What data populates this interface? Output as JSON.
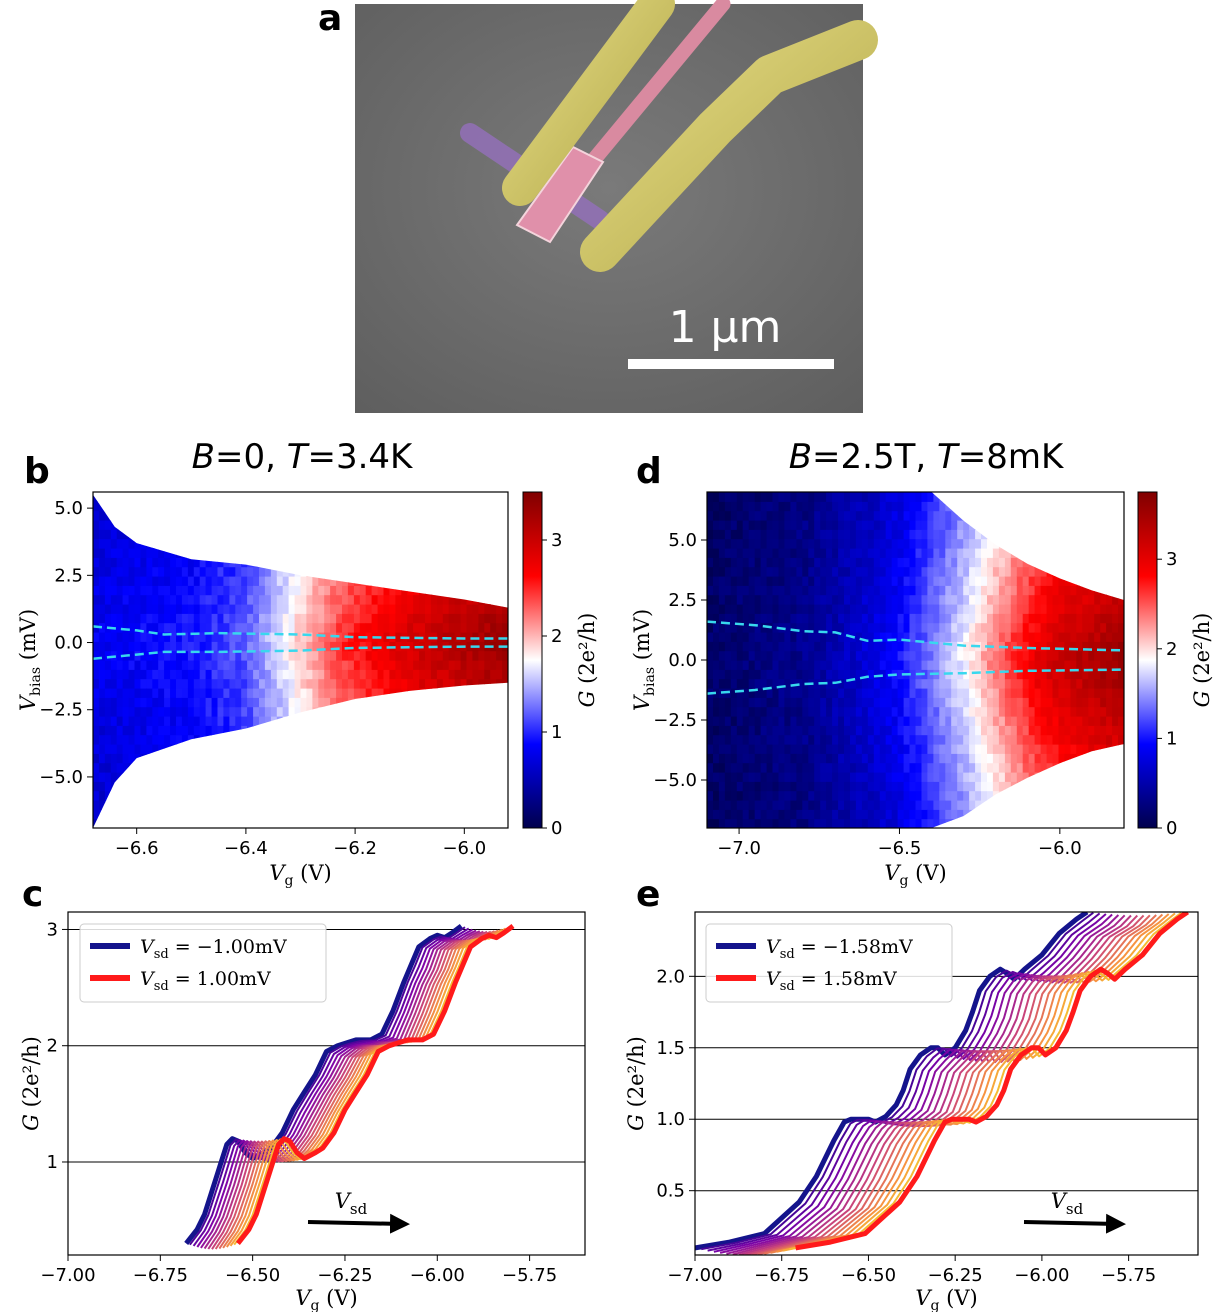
{
  "figure": {
    "panel_labels": {
      "a": "a",
      "b": "b",
      "c": "c",
      "d": "d",
      "e": "e"
    },
    "scale_bar_label": "1 µm"
  },
  "colors": {
    "gate_yellow": "#c9bf5c",
    "wire_pink": "#d98aa0",
    "wire_violet": "#9370b8",
    "substrate": "#6f6f6f",
    "cyan_dash": "#38d8ee",
    "neg_bias_blue": "#14148c",
    "pos_bias_red": "#ff1a1a"
  },
  "chart_data": [
    {
      "id": "b",
      "type": "heatmap",
      "title": "B=0,  T=3.4K",
      "title_parts": [
        "B",
        "=0,  ",
        "T",
        "=3.4K"
      ],
      "xlabel": "V_g (V)",
      "ylabel": "V_bias (mV)",
      "xlim": [
        -6.68,
        -5.92
      ],
      "ylim": [
        -6.9,
        5.6
      ],
      "xticks": [
        -6.6,
        -6.4,
        -6.2,
        -6.0
      ],
      "xtick_labels": [
        "−6.6",
        "−6.4",
        "−6.2",
        "−6.0"
      ],
      "yticks": [
        -5.0,
        -2.5,
        0.0,
        2.5,
        5.0
      ],
      "ytick_labels": [
        "−5.0",
        "−2.5",
        "0.0",
        "2.5",
        "5.0"
      ],
      "colorbar": {
        "label": "G (2e²/h)",
        "range": [
          0,
          3.5
        ],
        "ticks": [
          0,
          1,
          2,
          3
        ],
        "tick_labels": [
          "0",
          "1",
          "2",
          "3"
        ],
        "cmap": "seismic"
      },
      "envelope": {
        "vg": [
          -6.68,
          -6.64,
          -6.6,
          -6.5,
          -6.4,
          -6.3,
          -6.2,
          -6.1,
          -6.0,
          -5.92
        ],
        "vmax": [
          5.5,
          4.3,
          3.7,
          3.1,
          2.9,
          2.5,
          2.2,
          1.9,
          1.6,
          1.3
        ],
        "vmin": [
          -6.9,
          -5.2,
          -4.3,
          -3.6,
          -3.2,
          -2.6,
          -2.1,
          -1.8,
          -1.6,
          -1.5
        ]
      },
      "conductance_profile": {
        "vg": [
          -6.68,
          -6.5,
          -6.4,
          -6.32,
          -6.28,
          -6.22,
          -6.1,
          -6.0,
          -5.92
        ],
        "g": [
          0.8,
          0.95,
          1.2,
          1.8,
          2.1,
          2.5,
          2.95,
          3.2,
          3.35
        ]
      },
      "dashed_lines": [
        {
          "vg": [
            -6.68,
            -6.6,
            -6.55,
            -6.45,
            -6.3,
            -6.2,
            -6.0,
            -5.92
          ],
          "v": [
            0.6,
            0.45,
            0.3,
            0.35,
            0.3,
            0.2,
            0.15,
            0.15
          ]
        },
        {
          "vg": [
            -6.68,
            -6.6,
            -6.55,
            -6.45,
            -6.3,
            -6.2,
            -6.0,
            -5.92
          ],
          "v": [
            -0.6,
            -0.45,
            -0.35,
            -0.35,
            -0.3,
            -0.2,
            -0.15,
            -0.15
          ]
        }
      ]
    },
    {
      "id": "d",
      "type": "heatmap",
      "title": "B=2.5T,  T=8mK",
      "title_parts": [
        "B",
        "=2.5T,  ",
        "T",
        "=8mK"
      ],
      "xlabel": "V_g (V)",
      "ylabel": "V_bias (mV)",
      "xlim": [
        -7.1,
        -5.8
      ],
      "ylim": [
        -7.0,
        7.0
      ],
      "xticks": [
        -7.0,
        -6.5,
        -6.0
      ],
      "xtick_labels": [
        "−7.0",
        "−6.5",
        "−6.0"
      ],
      "yticks": [
        -5.0,
        -2.5,
        0.0,
        2.5,
        5.0
      ],
      "ytick_labels": [
        "−5.0",
        "−2.5",
        "0.0",
        "2.5",
        "5.0"
      ],
      "colorbar": {
        "label": "G (2e²/h)",
        "range": [
          0,
          3.75
        ],
        "ticks": [
          0,
          1,
          2,
          3
        ],
        "tick_labels": [
          "0",
          "1",
          "2",
          "3"
        ],
        "cmap": "seismic"
      },
      "envelope": {
        "vg": [
          -7.1,
          -6.5,
          -6.4,
          -6.3,
          -6.2,
          -6.1,
          -6.0,
          -5.9,
          -5.8
        ],
        "vmax": [
          7.0,
          7.0,
          7.0,
          5.8,
          4.8,
          4.0,
          3.4,
          2.9,
          2.5
        ],
        "vmin": [
          -7.0,
          -7.0,
          -7.0,
          -6.5,
          -5.6,
          -4.9,
          -4.3,
          -3.8,
          -3.5
        ]
      },
      "conductance_profile": {
        "vg": [
          -7.1,
          -6.8,
          -6.6,
          -6.5,
          -6.4,
          -6.3,
          -6.2,
          -6.1,
          -6.0,
          -5.8
        ],
        "g": [
          0.15,
          0.35,
          0.75,
          1.0,
          1.4,
          1.85,
          2.4,
          2.9,
          3.25,
          3.6
        ]
      },
      "dashed_lines": [
        {
          "vg": [
            -7.1,
            -6.95,
            -6.8,
            -6.7,
            -6.6,
            -6.5,
            -6.3,
            -6.1,
            -5.8
          ],
          "v": [
            1.6,
            1.45,
            1.2,
            1.15,
            0.8,
            0.85,
            0.6,
            0.5,
            0.4
          ]
        },
        {
          "vg": [
            -7.1,
            -6.95,
            -6.8,
            -6.7,
            -6.6,
            -6.5,
            -6.3,
            -6.1,
            -5.8
          ],
          "v": [
            -1.4,
            -1.25,
            -1.0,
            -0.95,
            -0.7,
            -0.6,
            -0.55,
            -0.45,
            -0.4
          ]
        }
      ]
    },
    {
      "id": "c",
      "type": "line",
      "xlabel": "V_g (V)",
      "ylabel": "G (2e²/h)",
      "xlim": [
        -7.0,
        -5.6
      ],
      "ylim": [
        0.2,
        3.15
      ],
      "xticks": [
        -7.0,
        -6.75,
        -6.5,
        -6.25,
        -6.0,
        -5.75
      ],
      "xtick_labels": [
        "−7.00",
        "−6.75",
        "−6.50",
        "−6.25",
        "−6.00",
        "−5.75"
      ],
      "yticks": [
        1,
        2,
        3
      ],
      "ytick_labels": [
        "1",
        "2",
        "3"
      ],
      "hlines": [
        1,
        2,
        3
      ],
      "legend": {
        "position": "upper-left",
        "entries": [
          "V_sd = −1.00mV",
          "V_sd = 1.00mV"
        ],
        "prefix": "V",
        "subscript": "sd",
        "values": [
          "−1.00mV",
          "1.00mV"
        ]
      },
      "arrow_label": "V_sd",
      "n_curves": 15,
      "shift_range": [
        0,
        0.14
      ],
      "base_curve": {
        "x": [
          -6.68,
          -6.65,
          -6.63,
          -6.6,
          -6.57,
          -6.555,
          -6.54,
          -6.52,
          -6.5,
          -6.47,
          -6.45,
          -6.42,
          -6.39,
          -6.36,
          -6.33,
          -6.3,
          -6.27,
          -6.25,
          -6.22,
          -6.2,
          -6.18,
          -6.15,
          -6.12,
          -6.09,
          -6.07,
          -6.05,
          -6.02,
          -6.0,
          -5.98,
          -5.96,
          -5.935
        ],
        "y": [
          0.3,
          0.42,
          0.55,
          0.85,
          1.15,
          1.2,
          1.18,
          1.08,
          1.03,
          1.08,
          1.12,
          1.25,
          1.45,
          1.6,
          1.75,
          1.95,
          2.0,
          2.02,
          2.05,
          2.05,
          2.05,
          2.1,
          2.3,
          2.55,
          2.7,
          2.85,
          2.92,
          2.95,
          2.93,
          2.97,
          3.03
        ]
      }
    },
    {
      "id": "e",
      "type": "line",
      "xlabel": "V_g (V)",
      "ylabel": "G (2e²/h)",
      "xlim": [
        -7.0,
        -5.55
      ],
      "ylim": [
        0.05,
        2.45
      ],
      "xticks": [
        -7.0,
        -6.75,
        -6.5,
        -6.25,
        -6.0,
        -5.75
      ],
      "xtick_labels": [
        "−7.00",
        "−6.75",
        "−6.50",
        "−6.25",
        "−6.00",
        "−5.75"
      ],
      "yticks": [
        0.5,
        1.0,
        1.5,
        2.0
      ],
      "ytick_labels": [
        "0.5",
        "1.0",
        "1.5",
        "2.0"
      ],
      "hlines": [
        0.5,
        1.0,
        1.5,
        2.0
      ],
      "legend": {
        "position": "upper-left",
        "entries": [
          "V_sd = −1.58mV",
          "V_sd = 1.58mV"
        ],
        "prefix": "V",
        "subscript": "sd",
        "values": [
          "−1.58mV",
          "1.58mV"
        ]
      },
      "arrow_label": "V_sd",
      "n_curves": 17,
      "shift_range": [
        0,
        0.29
      ],
      "base_curve": {
        "x": [
          -7.0,
          -6.9,
          -6.8,
          -6.7,
          -6.65,
          -6.6,
          -6.57,
          -6.55,
          -6.52,
          -6.5,
          -6.48,
          -6.45,
          -6.42,
          -6.4,
          -6.38,
          -6.35,
          -6.32,
          -6.3,
          -6.28,
          -6.25,
          -6.22,
          -6.2,
          -6.18,
          -6.15,
          -6.12,
          -6.1,
          -6.08,
          -6.05,
          -6.0,
          -5.95,
          -5.9,
          -5.87
        ],
        "y": [
          0.1,
          0.14,
          0.2,
          0.42,
          0.6,
          0.85,
          0.98,
          1.0,
          1.0,
          1.0,
          0.98,
          1.02,
          1.1,
          1.2,
          1.35,
          1.45,
          1.5,
          1.5,
          1.45,
          1.5,
          1.62,
          1.75,
          1.9,
          2.0,
          2.05,
          2.02,
          1.98,
          2.05,
          2.15,
          2.3,
          2.4,
          2.45
        ]
      }
    }
  ]
}
